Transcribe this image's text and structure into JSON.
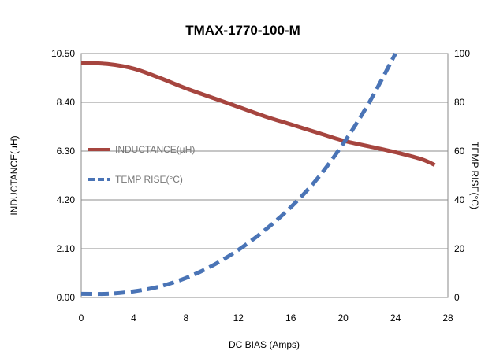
{
  "chart_data": {
    "type": "line",
    "title": "TMAX-1770-100-M",
    "xlabel": "DC BIAS (Amps)",
    "ylabel_left": "INDUCTANCE(µH)",
    "ylabel_right": "TEMP RISE(°C)",
    "xlim": [
      0,
      28
    ],
    "x_ticks": [
      "0",
      "4",
      "8",
      "12",
      "16",
      "20",
      "24",
      "28"
    ],
    "ylim_left": [
      0,
      10.5
    ],
    "y_left_ticks": [
      "0.00",
      "2.10",
      "4.20",
      "6.30",
      "8.40",
      "10.50"
    ],
    "ylim_right": [
      0,
      100
    ],
    "y_right_ticks": [
      "0",
      "20",
      "40",
      "60",
      "80",
      "100"
    ],
    "grid": true,
    "legend_position": "left-middle",
    "series": [
      {
        "name": "INDUCTANCE(µH)",
        "axis": "left",
        "color": "#a6453f",
        "style": "solid",
        "x": [
          0,
          2,
          4,
          6,
          8,
          10,
          12,
          14,
          16,
          18,
          20,
          22,
          24,
          26,
          27
        ],
        "y": [
          10.1,
          10.05,
          9.85,
          9.45,
          9.0,
          8.6,
          8.2,
          7.8,
          7.45,
          7.1,
          6.75,
          6.5,
          6.25,
          5.95,
          5.7
        ]
      },
      {
        "name": "TEMP RISE(°C)",
        "axis": "right",
        "color": "#4a74b6",
        "style": "dashed",
        "x": [
          0,
          2,
          4,
          6,
          8,
          10,
          12,
          14,
          16,
          18,
          20,
          22,
          24
        ],
        "y": [
          1.5,
          1.5,
          2.5,
          4.5,
          8.0,
          13.0,
          19.5,
          27.5,
          37.0,
          48.5,
          63.0,
          80.0,
          100.0
        ]
      }
    ]
  }
}
